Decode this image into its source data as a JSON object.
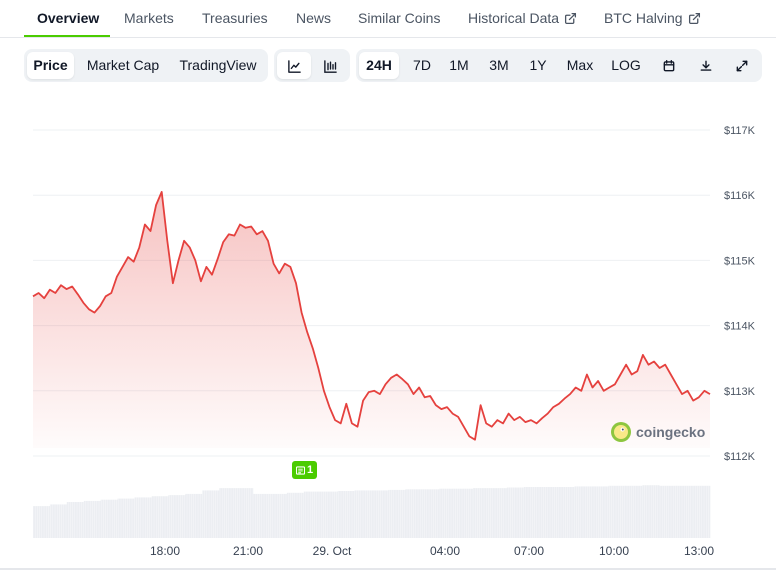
{
  "nav": {
    "tabs": [
      {
        "label": "Overview",
        "active": true
      },
      {
        "label": "Markets"
      },
      {
        "label": "Treasuries"
      },
      {
        "label": "News"
      },
      {
        "label": "Similar Coins"
      },
      {
        "label": "Historical Data",
        "external": true
      },
      {
        "label": "BTC Halving",
        "external": true
      }
    ]
  },
  "toolbar": {
    "data_type": [
      {
        "label": "Price",
        "active": true
      },
      {
        "label": "Market Cap"
      },
      {
        "label": "TradingView"
      }
    ],
    "chart_style_icons": [
      "line-chart-icon",
      "candlestick-chart-icon"
    ],
    "ranges": [
      {
        "label": "24H",
        "active": true
      },
      {
        "label": "7D"
      },
      {
        "label": "1M"
      },
      {
        "label": "3M"
      },
      {
        "label": "1Y"
      },
      {
        "label": "Max"
      },
      {
        "label": "LOG"
      }
    ],
    "action_icons": [
      "calendar-icon",
      "download-icon",
      "expand-icon"
    ]
  },
  "watermark": {
    "text": "coingecko"
  },
  "event_badge": {
    "count": "1"
  },
  "chart_data": {
    "type": "area",
    "series": [
      {
        "values": [
          114.45,
          114.5,
          114.42,
          114.55,
          114.5,
          114.62,
          114.56,
          114.6,
          114.48,
          114.35,
          114.25,
          114.2,
          114.3,
          114.45,
          114.5,
          114.75,
          114.9,
          115.05,
          114.98,
          115.2,
          115.55,
          115.45,
          115.85,
          116.05,
          115.3,
          114.65,
          115.0,
          115.3,
          115.2,
          115.0,
          114.68,
          114.9,
          114.78,
          115.02,
          115.28,
          115.4,
          115.38,
          115.55,
          115.5,
          115.52,
          115.4,
          115.45,
          115.3,
          114.95,
          114.8,
          114.95,
          114.9,
          114.65,
          114.2,
          113.9,
          113.65,
          113.35,
          113.0,
          112.75,
          112.55,
          112.5,
          112.8,
          112.5,
          112.45,
          112.85,
          112.98,
          113.0,
          112.95,
          113.1,
          113.2,
          113.25,
          113.18,
          113.1,
          112.95,
          113.05,
          112.9,
          112.92,
          112.78,
          112.72,
          112.75,
          112.65,
          112.6,
          112.45,
          112.3,
          112.25,
          112.78,
          112.5,
          112.45,
          112.55,
          112.5,
          112.65,
          112.55,
          112.6,
          112.52,
          112.55,
          112.5,
          112.58,
          112.65,
          112.75,
          112.8,
          112.88,
          112.95,
          113.05,
          113.0,
          113.25,
          113.05,
          113.15,
          113.0,
          113.05,
          113.1,
          113.25,
          113.4,
          113.25,
          113.3,
          113.55,
          113.4,
          113.45,
          113.35,
          113.4,
          113.25,
          113.1,
          112.95,
          113.0,
          112.85,
          112.9,
          113.0,
          112.95
        ]
      }
    ],
    "x_ticks": [
      "18:00",
      "21:00",
      "29. Oct",
      "04:00",
      "07:00",
      "10:00",
      "13:00"
    ],
    "y_ticks": [
      "$112K",
      "$113K",
      "$114K",
      "$115K",
      "$116K",
      "$117K"
    ],
    "ylim": [
      112,
      117
    ],
    "grid": true,
    "color": "#e5413e",
    "volume": [
      {
        "level": 0.55
      },
      {
        "level": 0.58
      },
      {
        "level": 0.62
      },
      {
        "level": 0.64
      },
      {
        "level": 0.66
      },
      {
        "level": 0.68
      },
      {
        "level": 0.7
      },
      {
        "level": 0.72
      },
      {
        "level": 0.74
      },
      {
        "level": 0.76
      },
      {
        "level": 0.82
      },
      {
        "level": 0.86
      },
      {
        "level": 0.86
      },
      {
        "level": 0.76
      },
      {
        "level": 0.76
      },
      {
        "level": 0.78
      },
      {
        "level": 0.8
      },
      {
        "level": 0.8
      },
      {
        "level": 0.81
      },
      {
        "level": 0.82
      },
      {
        "level": 0.82
      },
      {
        "level": 0.83
      },
      {
        "level": 0.84
      },
      {
        "level": 0.84
      },
      {
        "level": 0.85
      },
      {
        "level": 0.85
      },
      {
        "level": 0.86
      },
      {
        "level": 0.86
      },
      {
        "level": 0.87
      },
      {
        "level": 0.88
      },
      {
        "level": 0.88
      },
      {
        "level": 0.88
      },
      {
        "level": 0.89
      },
      {
        "level": 0.89
      },
      {
        "level": 0.9
      },
      {
        "level": 0.9
      },
      {
        "level": 0.91
      },
      {
        "level": 0.9
      },
      {
        "level": 0.9
      },
      {
        "level": 0.9
      }
    ]
  }
}
